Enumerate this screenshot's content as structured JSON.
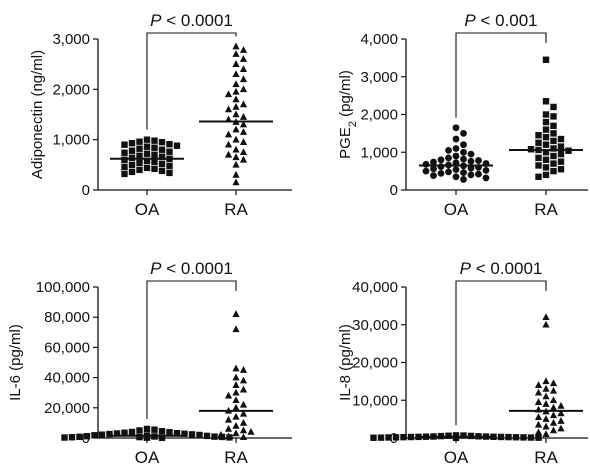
{
  "chart_data": [
    {
      "type": "scatter",
      "ylabel": "Adiponectin (ng/ml)",
      "ylabel_sub": "",
      "ylabel_rest": "",
      "ylim": [
        0,
        3000
      ],
      "yticks": [
        0,
        1000,
        2000,
        3000
      ],
      "ytick_labels": [
        "0",
        "1,000",
        "2,000",
        "3,000"
      ],
      "categories": [
        "OA",
        "RA"
      ],
      "markers": [
        "square",
        "triangle"
      ],
      "medians": [
        620,
        1360
      ],
      "pvalue": {
        "p": "P",
        "rest": " < 0.0001"
      },
      "groups": [
        {
          "name": "OA",
          "values": [
            1000,
            980,
            960,
            950,
            930,
            910,
            900,
            880,
            860,
            840,
            820,
            800,
            780,
            760,
            740,
            720,
            700,
            680,
            660,
            640,
            620,
            600,
            580,
            560,
            540,
            520,
            500,
            480,
            460,
            440,
            420,
            400,
            380,
            360,
            340,
            320
          ]
        },
        {
          "name": "RA",
          "values": [
            2850,
            2780,
            2700,
            2600,
            2500,
            2400,
            2300,
            2200,
            2100,
            2000,
            1950,
            1900,
            1800,
            1700,
            1650,
            1600,
            1500,
            1450,
            1400,
            1350,
            1300,
            1200,
            1150,
            1100,
            1000,
            950,
            900,
            800,
            750,
            700,
            650,
            600,
            500,
            300,
            150
          ]
        }
      ]
    },
    {
      "type": "scatter",
      "ylabel": "PGE",
      "ylabel_sub": "2",
      "ylabel_rest": " (pg/ml)",
      "ylim": [
        0,
        4000
      ],
      "yticks": [
        0,
        1000,
        2000,
        3000,
        4000
      ],
      "ytick_labels": [
        "0",
        "1,000",
        "2,000",
        "3,000",
        "4,000"
      ],
      "categories": [
        "OA",
        "RA"
      ],
      "markers": [
        "circle",
        "square"
      ],
      "medians": [
        650,
        1060
      ],
      "pvalue": {
        "p": "P",
        "rest": " < 0.001"
      },
      "groups": [
        {
          "name": "OA",
          "values": [
            1650,
            1500,
            1350,
            1200,
            1100,
            1050,
            1000,
            950,
            900,
            850,
            820,
            800,
            780,
            760,
            740,
            720,
            700,
            680,
            660,
            640,
            620,
            600,
            580,
            560,
            540,
            520,
            500,
            480,
            460,
            440,
            420,
            400,
            380,
            350,
            320,
            280
          ]
        },
        {
          "name": "RA",
          "values": [
            3450,
            2350,
            2200,
            2000,
            1950,
            1800,
            1700,
            1600,
            1500,
            1450,
            1400,
            1350,
            1300,
            1250,
            1200,
            1150,
            1100,
            1080,
            1060,
            1040,
            1000,
            950,
            900,
            850,
            800,
            750,
            700,
            650,
            600,
            550,
            500,
            400,
            350
          ]
        }
      ]
    },
    {
      "type": "scatter",
      "ylabel": "IL-6 (pg/ml)",
      "ylabel_sub": "",
      "ylabel_rest": "",
      "ylim": [
        0,
        100000
      ],
      "yticks": [
        0,
        20000,
        40000,
        60000,
        80000,
        100000
      ],
      "ytick_labels": [
        "0",
        "20,000",
        "40,000",
        "60,000",
        "80,000",
        "100,000"
      ],
      "categories": [
        "OA",
        "RA"
      ],
      "markers": [
        "square",
        "triangle"
      ],
      "medians": [
        1500,
        18000
      ],
      "pvalue": {
        "p": "P",
        "rest": " < 0.0001"
      },
      "groups": [
        {
          "name": "OA",
          "values": [
            6000,
            5500,
            5000,
            4500,
            4000,
            3800,
            3500,
            3200,
            3000,
            2800,
            2600,
            2400,
            2200,
            2000,
            1800,
            1600,
            1400,
            1200,
            1000,
            900,
            800,
            700,
            600,
            500,
            400,
            300,
            200,
            100
          ]
        },
        {
          "name": "RA",
          "values": [
            82000,
            72000,
            46000,
            45000,
            40000,
            38000,
            35000,
            32000,
            30000,
            28000,
            25000,
            22000,
            20000,
            18000,
            16000,
            14000,
            12000,
            10000,
            8000,
            6000,
            5000,
            4000,
            3000,
            2000,
            1000,
            500
          ]
        }
      ]
    },
    {
      "type": "scatter",
      "ylabel": "IL-8 (pg/ml)",
      "ylabel_sub": "",
      "ylabel_rest": "",
      "ylim": [
        0,
        40000
      ],
      "yticks": [
        0,
        10000,
        20000,
        30000,
        40000
      ],
      "ytick_labels": [
        "0",
        "10,000",
        "20,000",
        "30,000",
        "40,000"
      ],
      "categories": [
        "OA",
        "RA"
      ],
      "markers": [
        "square",
        "triangle"
      ],
      "medians": [
        300,
        7200
      ],
      "pvalue": {
        "p": "P",
        "rest": " < 0.0001"
      },
      "groups": [
        {
          "name": "OA",
          "values": [
            700,
            650,
            600,
            550,
            500,
            450,
            400,
            380,
            350,
            320,
            300,
            280,
            260,
            240,
            220,
            200,
            180,
            160,
            140,
            120,
            100,
            80,
            60,
            40
          ]
        },
        {
          "name": "RA",
          "values": [
            32000,
            30000,
            15000,
            14500,
            14000,
            13000,
            12500,
            12000,
            11000,
            10000,
            9500,
            9000,
            8500,
            8000,
            7500,
            7000,
            6500,
            6000,
            5500,
            5000,
            4500,
            4000,
            3500,
            3000,
            2500,
            2000,
            1500,
            1000
          ]
        }
      ]
    }
  ]
}
